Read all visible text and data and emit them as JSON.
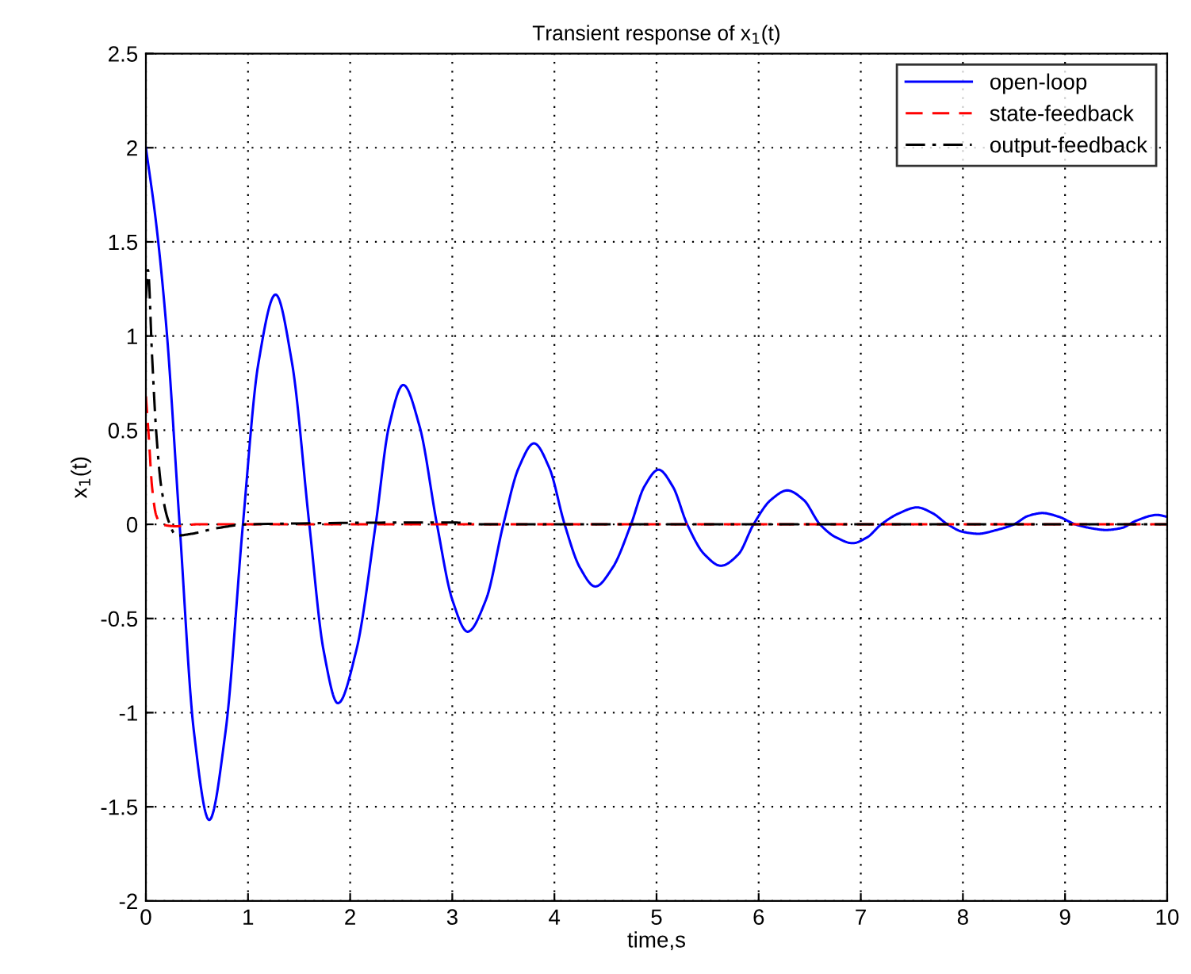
{
  "chart_data": {
    "type": "line",
    "title": "Transient response of x$_{1}$(t)",
    "xlabel": "time,s",
    "ylabel": "x$_{1}$(t)",
    "xlim": [
      0,
      10
    ],
    "xticks": [
      0,
      1,
      2,
      3,
      4,
      5,
      6,
      7,
      8,
      9,
      10
    ],
    "ylim": [
      -2,
      2.5
    ],
    "yticks": [
      -2,
      -1.5,
      -1,
      -0.5,
      0,
      0.5,
      1,
      1.5,
      2,
      2.5
    ],
    "grid": true,
    "legend": "top right",
    "marker": "none",
    "series": [
      {
        "name": "open-loop",
        "color": "#0000ff",
        "line_style": "solid",
        "x": [
          0,
          0.1,
          0.2,
          0.33,
          0.47,
          0.62,
          0.78,
          0.95,
          1.1,
          1.27,
          1.43,
          1.6,
          1.74,
          1.88,
          2.06,
          2.25,
          2.38,
          2.52,
          2.68,
          2.85,
          3.0,
          3.15,
          3.33,
          3.5,
          3.65,
          3.8,
          3.95,
          4.1,
          4.25,
          4.4,
          4.57,
          4.75,
          4.88,
          5.02,
          5.16,
          5.3,
          5.47,
          5.63,
          5.8,
          5.95,
          6.12,
          6.28,
          6.44,
          6.6,
          6.76,
          6.92,
          7.06,
          7.2,
          7.38,
          7.55,
          7.7,
          7.85,
          8.0,
          8.15,
          8.33,
          8.5,
          8.64,
          8.78,
          8.94,
          9.1,
          9.25,
          9.4,
          9.55,
          9.7,
          9.9,
          10
        ],
        "values": [
          2.0,
          1.6,
          1.05,
          0,
          -1.1,
          -1.57,
          -1.1,
          0,
          0.85,
          1.22,
          0.86,
          0,
          -0.67,
          -0.95,
          -0.67,
          0,
          0.52,
          0.74,
          0.52,
          0,
          -0.4,
          -0.57,
          -0.4,
          0,
          0.3,
          0.43,
          0.3,
          0,
          -0.23,
          -0.33,
          -0.23,
          0,
          0.2,
          0.29,
          0.2,
          0,
          -0.16,
          -0.22,
          -0.16,
          0,
          0.13,
          0.18,
          0.13,
          0,
          -0.07,
          -0.1,
          -0.07,
          0,
          0.06,
          0.09,
          0.06,
          0,
          -0.04,
          -0.05,
          -0.03,
          0,
          0.045,
          0.06,
          0.04,
          0,
          -0.02,
          -0.03,
          -0.02,
          0.02,
          0.05,
          0.04
        ]
      },
      {
        "name": "state-feedback",
        "color": "#ff0000",
        "line_style": "dashed",
        "x": [
          0,
          0.03,
          0.06,
          0.1,
          0.15,
          0.3,
          0.5,
          1,
          10
        ],
        "values": [
          0.68,
          0.45,
          0.2,
          0.05,
          0,
          -0.01,
          0,
          0,
          0
        ]
      },
      {
        "name": "output-feedback",
        "color": "#000000",
        "line_style": "dashdot",
        "x": [
          0,
          0.02,
          0.06,
          0.1,
          0.15,
          0.22,
          0.3,
          0.45,
          0.7,
          1.0,
          3.0,
          3.3,
          10
        ],
        "values": [
          1.2,
          1.35,
          0.9,
          0.5,
          0.2,
          0.02,
          -0.06,
          -0.05,
          -0.02,
          0,
          0.01,
          0,
          0
        ]
      }
    ]
  }
}
